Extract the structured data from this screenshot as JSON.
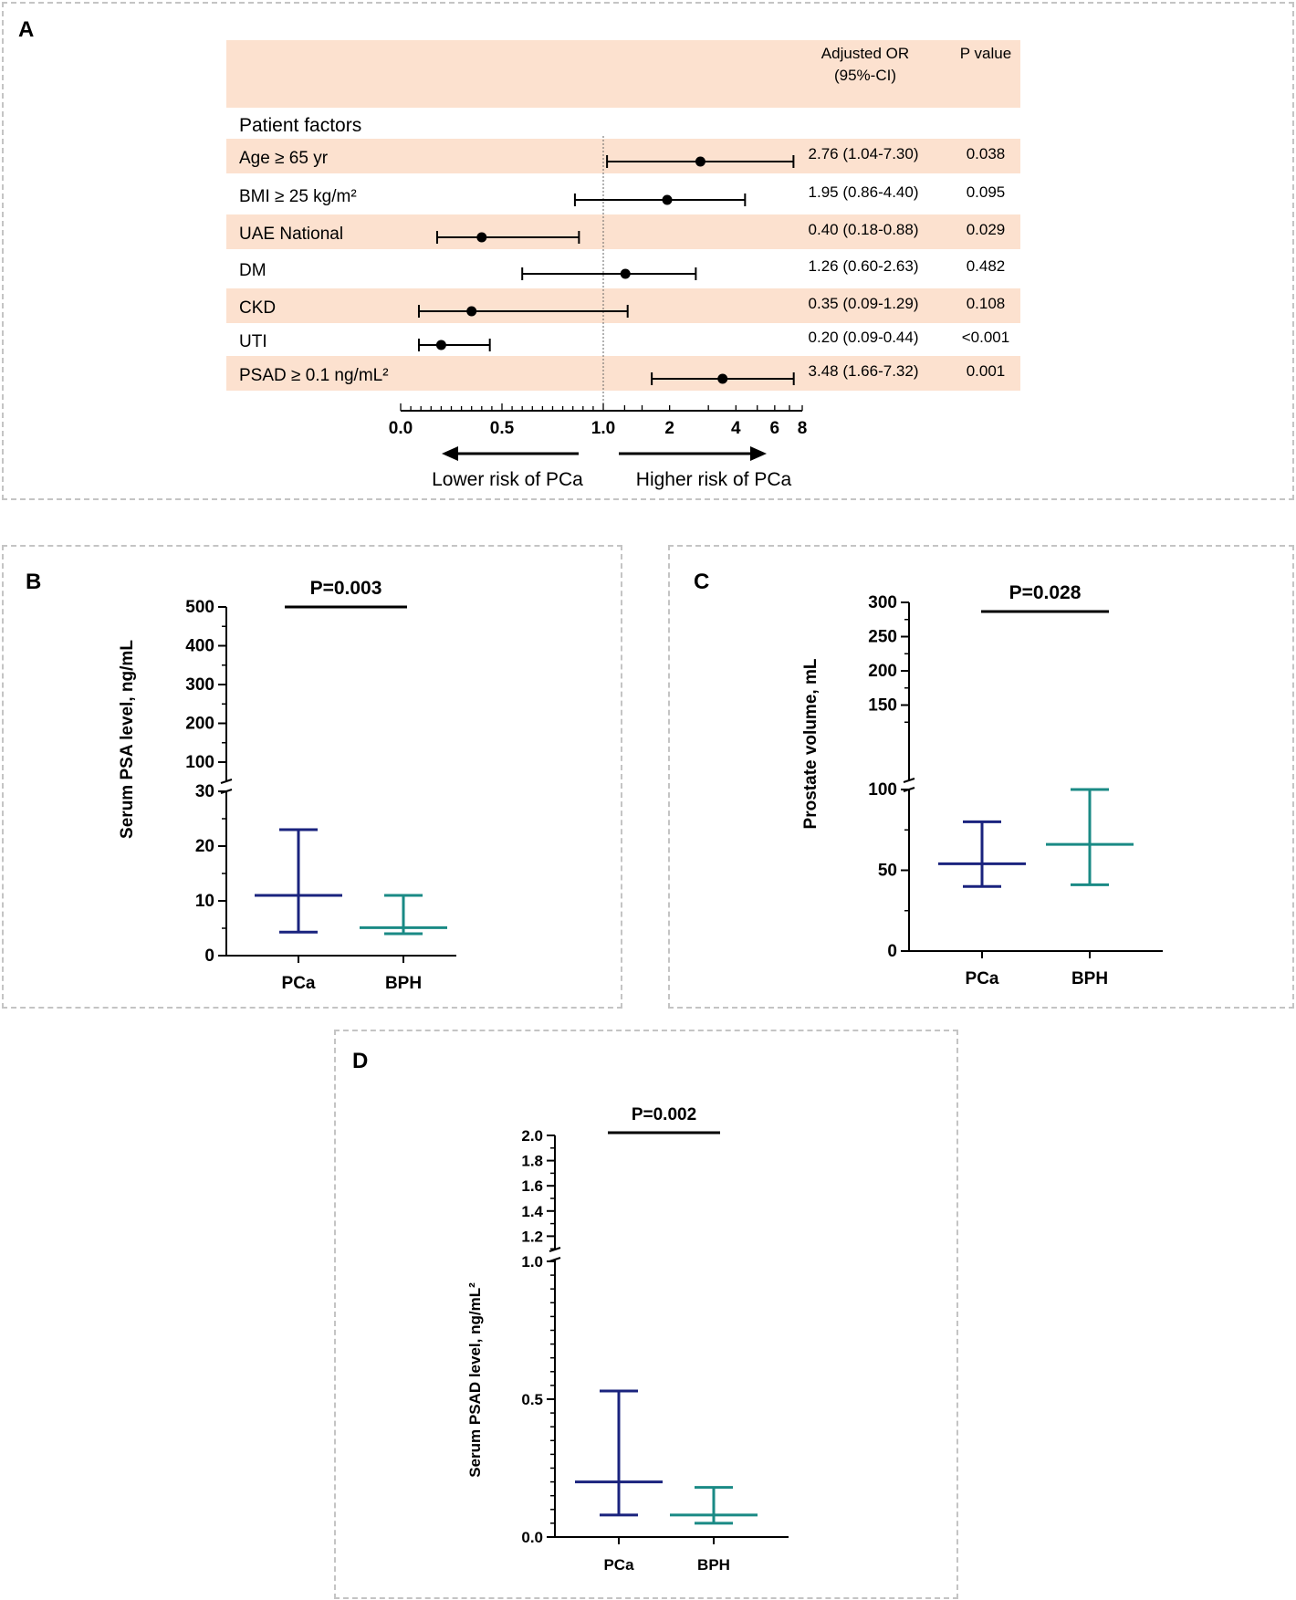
{
  "colors": {
    "band": "#fce1cf",
    "pca": "#1a237e",
    "bph": "#1a8a85",
    "panel_border": "#c4c4c4"
  },
  "chart_data": [
    {
      "type": "forest",
      "panel": "A",
      "title": "",
      "header": {
        "or_col": [
          "Adjusted OR",
          "(95%-CI)"
        ],
        "p_col": "P value"
      },
      "section_label": "Patient factors",
      "xlabel_left": "Lower risk of PCa",
      "xlabel_right": "Higher risk of PCa",
      "reference_line": 1.0,
      "ticks": [
        "0.0",
        "0.5",
        "1.0",
        "2",
        "4",
        "6",
        "8"
      ],
      "rows": [
        {
          "label": "Age ≥ 65 yr",
          "or": 2.76,
          "lo": 1.04,
          "hi": 7.3,
          "ci_text": "2.76 (1.04-7.30)",
          "p": "0.038",
          "shaded": true
        },
        {
          "label": "BMI ≥ 25 kg/m²",
          "or": 1.95,
          "lo": 0.86,
          "hi": 4.4,
          "ci_text": "1.95 (0.86-4.40)",
          "p": "0.095",
          "shaded": false
        },
        {
          "label": "UAE National",
          "or": 0.4,
          "lo": 0.18,
          "hi": 0.88,
          "ci_text": "0.40 (0.18-0.88)",
          "p": "0.029",
          "shaded": true
        },
        {
          "label": "DM",
          "or": 1.26,
          "lo": 0.6,
          "hi": 2.63,
          "ci_text": "1.26 (0.60-2.63)",
          "p": "0.482",
          "shaded": false
        },
        {
          "label": "CKD",
          "or": 0.35,
          "lo": 0.09,
          "hi": 1.29,
          "ci_text": "0.35 (0.09-1.29)",
          "p": "0.108",
          "shaded": true
        },
        {
          "label": "UTI",
          "or": 0.2,
          "lo": 0.09,
          "hi": 0.44,
          "ci_text": "0.20 (0.09-0.44)",
          "p": "<0.001",
          "shaded": false
        },
        {
          "label": "PSAD ≥ 0.1 ng/mL²",
          "or": 3.48,
          "lo": 1.66,
          "hi": 7.32,
          "ci_text": "3.48 (1.66-7.32)",
          "p": "0.001",
          "shaded": true
        }
      ]
    },
    {
      "type": "median-iqr",
      "panel": "B",
      "ylabel": "Serum PSA level, ng/mL",
      "pvalue": "P=0.003",
      "categories": [
        "PCa",
        "BPH"
      ],
      "lower_ticks": [
        "0",
        "10",
        "20",
        "30"
      ],
      "upper_ticks": [
        "100",
        "200",
        "300",
        "400",
        "500"
      ],
      "lower_range": [
        0,
        30
      ],
      "upper_range": [
        100,
        500
      ],
      "series": [
        {
          "name": "PCa",
          "median": 11,
          "q1": 4.3,
          "q3": 23
        },
        {
          "name": "BPH",
          "median": 5.1,
          "q1": 4.0,
          "q3": 11
        }
      ]
    },
    {
      "type": "median-iqr",
      "panel": "C",
      "ylabel": "Prostate volume, mL",
      "pvalue": "P=0.028",
      "categories": [
        "PCa",
        "BPH"
      ],
      "lower_ticks": [
        "0",
        "50",
        "100"
      ],
      "upper_ticks": [
        "150",
        "200",
        "250",
        "300"
      ],
      "lower_range": [
        0,
        100
      ],
      "upper_range": [
        100,
        300
      ],
      "series": [
        {
          "name": "PCa",
          "median": 54,
          "q1": 40,
          "q3": 80
        },
        {
          "name": "BPH",
          "median": 66,
          "q1": 41,
          "q3": 100
        }
      ]
    },
    {
      "type": "median-iqr",
      "panel": "D",
      "ylabel": "Serum PSAD level, ng/mL²",
      "pvalue": "P=0.002",
      "categories": [
        "PCa",
        "BPH"
      ],
      "lower_ticks": [
        "0.0",
        "0.5",
        "1.0"
      ],
      "upper_ticks": [
        "1.2",
        "1.4",
        "1.6",
        "1.8",
        "2.0"
      ],
      "lower_range": [
        0,
        1.0
      ],
      "upper_range": [
        1.0,
        2.0
      ],
      "series": [
        {
          "name": "PCa",
          "median": 0.2,
          "q1": 0.08,
          "q3": 0.53
        },
        {
          "name": "BPH",
          "median": 0.08,
          "q1": 0.05,
          "q3": 0.18
        }
      ]
    }
  ]
}
